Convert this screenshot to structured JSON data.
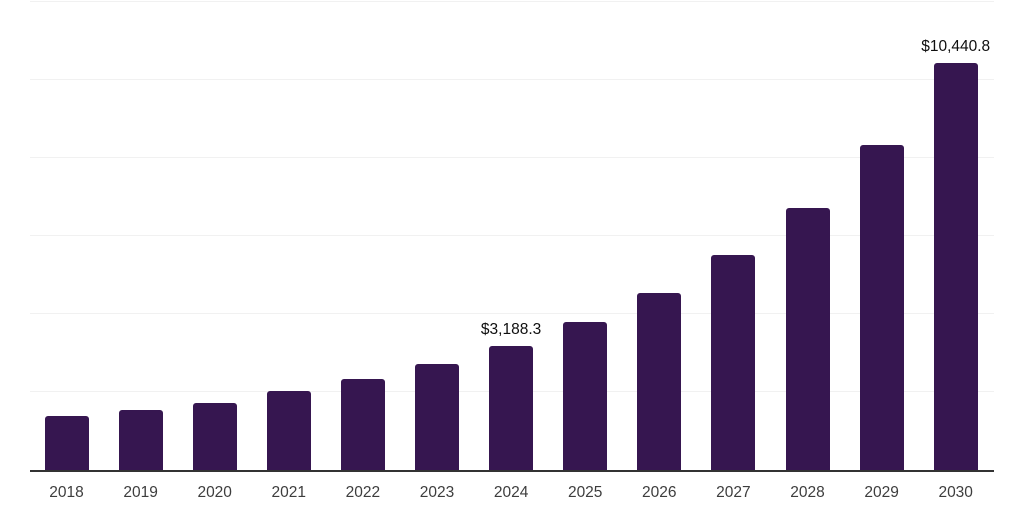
{
  "chart_data": {
    "type": "bar",
    "categories": [
      "2018",
      "2019",
      "2020",
      "2021",
      "2022",
      "2023",
      "2024",
      "2025",
      "2026",
      "2027",
      "2028",
      "2029",
      "2030"
    ],
    "values": [
      1390,
      1540,
      1725,
      2035,
      2335,
      2720,
      3188.3,
      3800,
      4540,
      5515,
      6720,
      8330,
      10440.8
    ],
    "data_labels": [
      null,
      null,
      null,
      null,
      null,
      null,
      "$3,188.3",
      null,
      null,
      null,
      null,
      null,
      "$10,440.8"
    ],
    "title": "",
    "xlabel": "",
    "ylabel": "",
    "ylim": [
      0,
      12000
    ],
    "gridline_step": 2000,
    "grid": true,
    "legend_position": "none"
  },
  "colors": {
    "bar": "#361650",
    "axis": "#333333",
    "gridline": "#f1f1f1",
    "tick_label": "#3d3d3d",
    "value_label": "#0f0f0f",
    "background": "#ffffff"
  }
}
